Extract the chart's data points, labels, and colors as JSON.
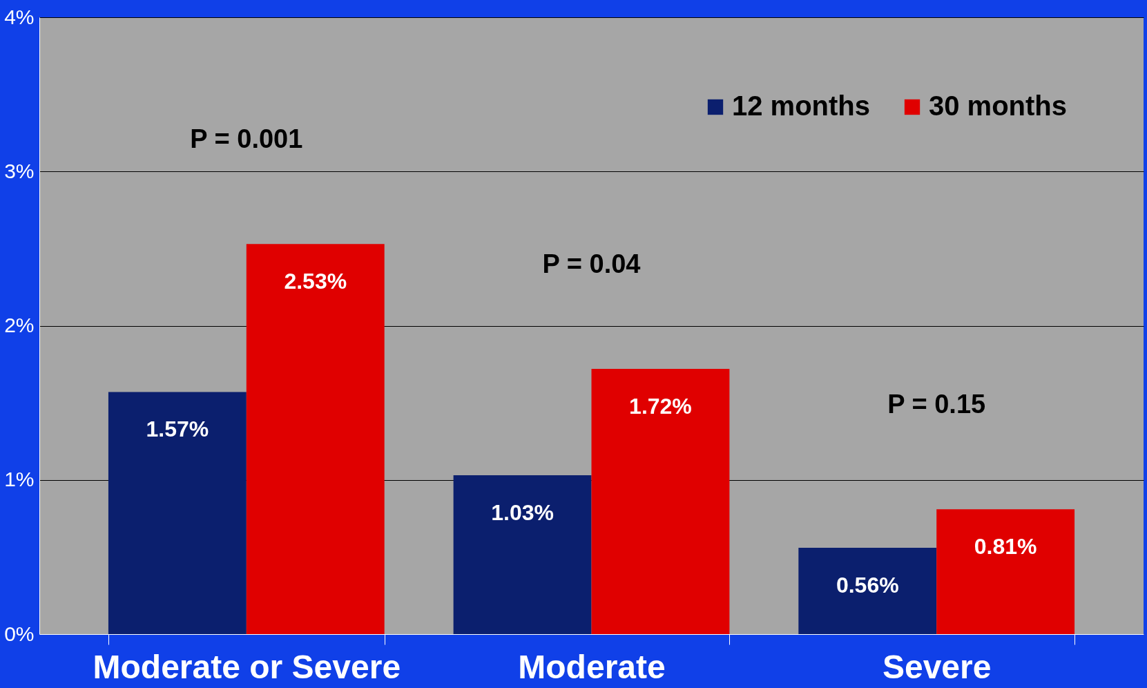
{
  "chart_data": {
    "type": "bar",
    "categories": [
      "Moderate or Severe",
      "Moderate",
      "Severe"
    ],
    "series": [
      {
        "name": "12 months",
        "color": "#0b1f6e",
        "values": [
          1.57,
          1.03,
          0.56
        ]
      },
      {
        "name": "30 months",
        "color": "#e00000",
        "values": [
          2.53,
          1.72,
          0.81
        ]
      }
    ],
    "ylim": [
      0,
      4
    ],
    "yticks": [
      {
        "value": 0,
        "label": "0%"
      },
      {
        "value": 1,
        "label": "1%"
      },
      {
        "value": 2,
        "label": "2%"
      },
      {
        "value": 3,
        "label": "3%"
      },
      {
        "value": 4,
        "label": "4%"
      }
    ],
    "value_labels": [
      [
        "1.57%",
        "1.03%",
        "0.56%"
      ],
      [
        "2.53%",
        "1.72%",
        "0.81%"
      ]
    ],
    "annotations": [
      "P = 0.001",
      "P = 0.04",
      "P = 0.15"
    ],
    "grid": "y",
    "legend": "top right"
  }
}
